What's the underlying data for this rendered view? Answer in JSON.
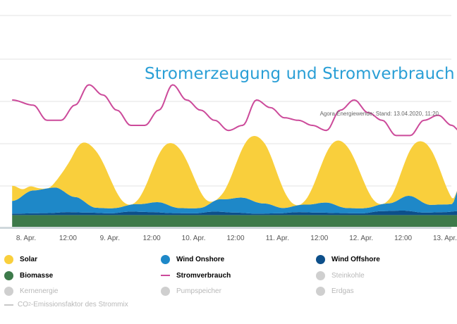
{
  "chart_data": {
    "type": "area",
    "title": "Stromerzeugung und Stromverbrauch",
    "source": "Agora Energiewende; Stand: 13.04.2020, 11:20",
    "x_ticks": [
      "8. Apr.",
      "12:00",
      "9. Apr.",
      "12:00",
      "10. Apr.",
      "12:00",
      "11. Apr.",
      "12:00",
      "12. Apr.",
      "12:00",
      "13. Apr."
    ],
    "x_range_hours": [
      -4,
      4
    ],
    "grid": "horizontal",
    "legend_placement": "bottom",
    "series": [
      {
        "name": "Biomasse",
        "color": "#3d7a4a",
        "values": [
          [
            -4,
            4.6
          ],
          [
            4,
            4.6
          ]
        ]
      },
      {
        "name": "Wind Offshore",
        "color": "#0d4f8a",
        "values": [
          [
            -4,
            0.6
          ],
          [
            6,
            0.8
          ],
          [
            12,
            1.2
          ],
          [
            18,
            1.0
          ],
          [
            24,
            0.7
          ],
          [
            30,
            1.4
          ],
          [
            36,
            1.2
          ],
          [
            42,
            0.8
          ],
          [
            48,
            0.7
          ],
          [
            54,
            1.4
          ],
          [
            60,
            1.0
          ],
          [
            66,
            0.6
          ],
          [
            72,
            0.7
          ],
          [
            78,
            1.2
          ],
          [
            84,
            1.0
          ],
          [
            90,
            0.8
          ],
          [
            96,
            0.7
          ],
          [
            102,
            1.6
          ],
          [
            108,
            1.8
          ],
          [
            114,
            1.0
          ],
          [
            120,
            1.2
          ],
          [
            124,
            1.6
          ]
        ]
      },
      {
        "name": "Wind Onshore",
        "color": "#1e88c8",
        "values": [
          [
            -4,
            5
          ],
          [
            2,
            9
          ],
          [
            8,
            10
          ],
          [
            14,
            6
          ],
          [
            20,
            2
          ],
          [
            26,
            2
          ],
          [
            32,
            3
          ],
          [
            38,
            4
          ],
          [
            44,
            2
          ],
          [
            50,
            2
          ],
          [
            56,
            5
          ],
          [
            62,
            6
          ],
          [
            68,
            4
          ],
          [
            74,
            2
          ],
          [
            80,
            3
          ],
          [
            86,
            4
          ],
          [
            92,
            2
          ],
          [
            98,
            2
          ],
          [
            104,
            3
          ],
          [
            110,
            6
          ],
          [
            116,
            3
          ],
          [
            122,
            3
          ],
          [
            124,
            9
          ]
        ]
      },
      {
        "name": "Solar",
        "color": "#f9cf3c",
        "values": [
          [
            -4,
            6
          ],
          [
            0,
            2
          ],
          [
            6,
            0
          ],
          [
            18,
            24
          ],
          [
            30,
            0
          ],
          [
            42,
            25
          ],
          [
            54,
            0
          ],
          [
            66,
            26
          ],
          [
            78,
            0
          ],
          [
            90,
            26
          ],
          [
            102,
            0
          ],
          [
            114,
            24
          ],
          [
            124,
            0
          ]
        ]
      },
      {
        "name": "Stromverbrauch",
        "color": "#cc4a9a",
        "values": [
          [
            -4,
            50
          ],
          [
            2,
            48
          ],
          [
            6,
            42
          ],
          [
            10,
            42
          ],
          [
            14,
            48
          ],
          [
            18,
            56
          ],
          [
            22,
            52
          ],
          [
            26,
            46
          ],
          [
            30,
            40
          ],
          [
            34,
            40
          ],
          [
            38,
            46
          ],
          [
            42,
            56
          ],
          [
            46,
            50
          ],
          [
            50,
            46
          ],
          [
            54,
            42
          ],
          [
            58,
            38
          ],
          [
            62,
            40
          ],
          [
            66,
            50
          ],
          [
            70,
            47
          ],
          [
            74,
            43
          ],
          [
            78,
            42
          ],
          [
            82,
            40
          ],
          [
            86,
            38
          ],
          [
            90,
            46
          ],
          [
            94,
            50
          ],
          [
            98,
            45
          ],
          [
            102,
            42
          ],
          [
            106,
            36
          ],
          [
            110,
            36
          ],
          [
            114,
            42
          ],
          [
            118,
            44
          ],
          [
            122,
            40
          ],
          [
            124,
            38
          ]
        ]
      }
    ]
  },
  "legend": [
    {
      "label": "Solar",
      "color": "#f9cf3c",
      "kind": "dot",
      "active": true
    },
    {
      "label": "Wind Onshore",
      "color": "#1e88c8",
      "kind": "dot",
      "active": true
    },
    {
      "label": "Wind Offshore",
      "color": "#0d4f8a",
      "kind": "dot",
      "active": true
    },
    {
      "label": "Biomasse",
      "color": "#3d7a4a",
      "kind": "dot",
      "active": true
    },
    {
      "label": "Stromverbrauch",
      "color": "#cc4a9a",
      "kind": "line",
      "active": true
    },
    {
      "label": "Steinkohle",
      "color": "#cfcfcf",
      "kind": "dot",
      "active": false
    },
    {
      "label": "Kernenergie",
      "color": "#cfcfcf",
      "kind": "dot",
      "active": false
    },
    {
      "label": "Pumpspeicher",
      "color": "#cfcfcf",
      "kind": "dot",
      "active": false
    },
    {
      "label": "Erdgas",
      "color": "#cfcfcf",
      "kind": "dot",
      "active": false
    }
  ],
  "co2_legend": {
    "prefix": "CO",
    "sub": "2",
    "suffix": "-Emissionsfaktor des Strommix"
  }
}
